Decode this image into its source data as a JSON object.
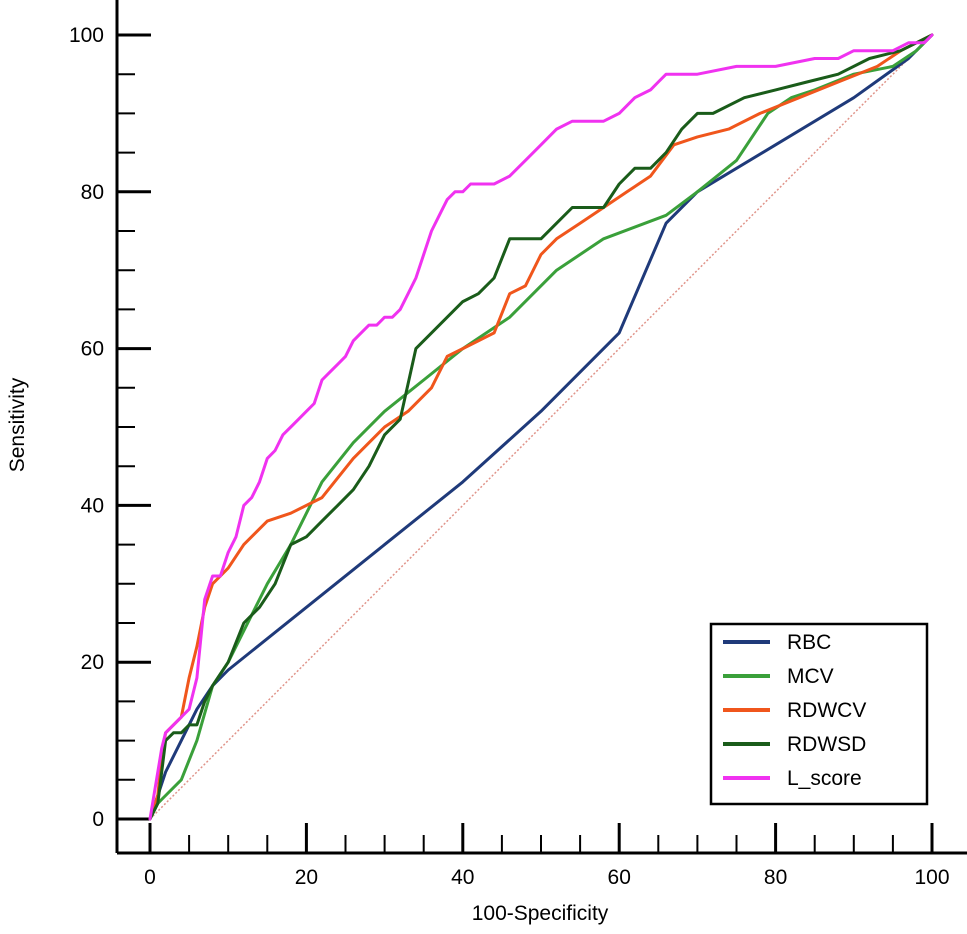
{
  "chart_data": {
    "type": "line",
    "xlabel": "100-Specificity",
    "ylabel": "Sensitivity",
    "xlim": [
      0,
      100
    ],
    "ylim": [
      0,
      100
    ],
    "x_ticks": [
      0,
      20,
      40,
      60,
      80,
      100
    ],
    "y_ticks": [
      0,
      20,
      40,
      60,
      80,
      100
    ],
    "grid": false,
    "legend_position": "bottom-right",
    "reference_line": {
      "x": [
        0,
        100
      ],
      "y": [
        0,
        100
      ],
      "color": "#e0948a",
      "style": "dotted"
    },
    "series": [
      {
        "name": "RBC",
        "color": "#1f3a7a",
        "x": [
          0,
          2,
          4,
          6,
          8,
          10,
          20,
          30,
          40,
          50,
          60,
          66,
          70,
          80,
          90,
          97,
          100
        ],
        "y": [
          0,
          6,
          10,
          14,
          17,
          19,
          27,
          35,
          43,
          52,
          62,
          76,
          80,
          86,
          92,
          97,
          100
        ]
      },
      {
        "name": "MCV",
        "color": "#3aa03a",
        "x": [
          0,
          1,
          2,
          4,
          6,
          8,
          10,
          12,
          15,
          18,
          22,
          26,
          30,
          35,
          40,
          46,
          52,
          58,
          66,
          70,
          75,
          79,
          82,
          85,
          90,
          95,
          98,
          100
        ],
        "y": [
          0,
          2,
          3,
          5,
          10,
          17,
          20,
          24,
          30,
          35,
          43,
          48,
          52,
          56,
          60,
          64,
          70,
          74,
          77,
          80,
          84,
          90,
          92,
          93,
          95,
          96,
          98,
          100
        ]
      },
      {
        "name": "RDWCV",
        "color": "#f0561c",
        "x": [
          0,
          1,
          1.5,
          2,
          4,
          5,
          6,
          7,
          8,
          9,
          10,
          12,
          15,
          18,
          22,
          26,
          30,
          33,
          36,
          38,
          40,
          44,
          46,
          48,
          50,
          52,
          55,
          58,
          61,
          64,
          67,
          70,
          74,
          78,
          83,
          88,
          93,
          96,
          98,
          100
        ],
        "y": [
          0,
          3,
          8,
          11,
          13,
          18,
          22,
          27,
          30,
          31,
          32,
          35,
          38,
          39,
          41,
          46,
          50,
          52,
          55,
          59,
          60,
          62,
          67,
          68,
          72,
          74,
          76,
          78,
          80,
          82,
          86,
          87,
          88,
          90,
          92,
          94,
          96,
          98,
          99,
          100
        ]
      },
      {
        "name": "RDWSD",
        "color": "#1a5c1a",
        "x": [
          0,
          1,
          1.5,
          2,
          3,
          4,
          5,
          6,
          7,
          8,
          10,
          12,
          14,
          16,
          18,
          20,
          22,
          24,
          26,
          28,
          30,
          32,
          34,
          36,
          38,
          40,
          42,
          44,
          46,
          48,
          50,
          52,
          54,
          56,
          58,
          60,
          62,
          64,
          66,
          68,
          70,
          72,
          76,
          80,
          84,
          88,
          92,
          96,
          98,
          100
        ],
        "y": [
          0,
          2,
          6,
          10,
          11,
          11,
          12,
          12,
          15,
          17,
          20,
          25,
          27,
          30,
          35,
          36,
          38,
          40,
          42,
          45,
          49,
          51,
          60,
          62,
          64,
          66,
          67,
          69,
          74,
          74,
          74,
          76,
          78,
          78,
          78,
          81,
          83,
          83,
          85,
          88,
          90,
          90,
          92,
          93,
          94,
          95,
          97,
          98,
          99,
          100
        ]
      },
      {
        "name": "L_score",
        "color": "#f032f0",
        "x": [
          0,
          0.5,
          1,
          1.5,
          2,
          3,
          4,
          5,
          6,
          6.5,
          7,
          8,
          9,
          10,
          11,
          12,
          13,
          14,
          15,
          16,
          17,
          18,
          19,
          20,
          21,
          22,
          23,
          24,
          25,
          26,
          27,
          28,
          29,
          30,
          31,
          32,
          33,
          34,
          35,
          36,
          37,
          38,
          39,
          40,
          41,
          42,
          44,
          46,
          48,
          50,
          52,
          54,
          56,
          58,
          60,
          62,
          64,
          65,
          66,
          70,
          75,
          80,
          85,
          88,
          90,
          93,
          95,
          97,
          99,
          100
        ],
        "y": [
          0,
          3,
          6,
          9,
          11,
          12,
          13,
          14,
          18,
          23,
          28,
          31,
          31,
          34,
          36,
          40,
          41,
          43,
          46,
          47,
          49,
          50,
          51,
          52,
          53,
          56,
          57,
          58,
          59,
          61,
          62,
          63,
          63,
          64,
          64,
          65,
          67,
          69,
          72,
          75,
          77,
          79,
          80,
          80,
          81,
          81,
          81,
          82,
          84,
          86,
          88,
          89,
          89,
          89,
          90,
          92,
          93,
          94,
          95,
          95,
          96,
          96,
          97,
          97,
          98,
          98,
          98,
          99,
          99,
          100
        ]
      }
    ]
  }
}
